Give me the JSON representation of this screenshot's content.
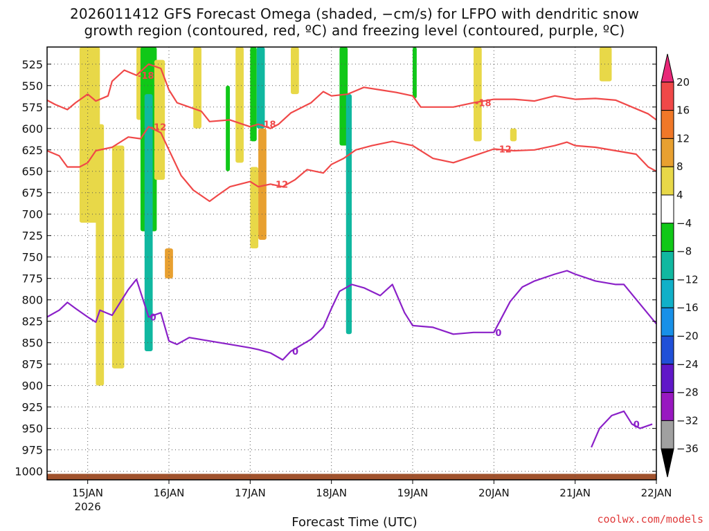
{
  "title": {
    "line1": "2026011412 GFS Forecast Omega (shaded, −cm/s) for LFPO with dendritic snow",
    "line2": "growth region (contoured, red, ºC) and freezing level (contoured, purple, ºC)"
  },
  "credit": "coolwx.com/models",
  "chart_data": {
    "type": "time-height contour",
    "xlabel": "Forecast Time (UTC)",
    "ylabel": "",
    "x_ticks": [
      {
        "day": 15,
        "label": "15JAN",
        "sub": "2026"
      },
      {
        "day": 16,
        "label": "16JAN",
        "sub": ""
      },
      {
        "day": 17,
        "label": "17JAN",
        "sub": ""
      },
      {
        "day": 18,
        "label": "18JAN",
        "sub": ""
      },
      {
        "day": 19,
        "label": "19JAN",
        "sub": ""
      },
      {
        "day": 20,
        "label": "20JAN",
        "sub": ""
      },
      {
        "day": 21,
        "label": "21JAN",
        "sub": ""
      },
      {
        "day": 22,
        "label": "22JAN",
        "sub": ""
      }
    ],
    "xlim": [
      14.5,
      22.0
    ],
    "ylim": [
      1010,
      505
    ],
    "y_ticks": [
      525,
      550,
      575,
      600,
      625,
      650,
      675,
      700,
      725,
      750,
      775,
      800,
      825,
      850,
      875,
      900,
      925,
      950,
      975,
      1000
    ],
    "grid": true,
    "colorbar": {
      "labels": [
        "20",
        "16",
        "12",
        "8",
        "4",
        "−4",
        "−8",
        "−12",
        "−16",
        "−20",
        "−24",
        "−28",
        "−32",
        "−36"
      ],
      "colors": [
        "#e82878",
        "#f04848",
        "#f07828",
        "#e8a030",
        "#e8d848",
        "#ffffff",
        "#10c818",
        "#10b8a0",
        "#10b0c8",
        "#1890e8",
        "#2050d8",
        "#6018c8",
        "#9818c0",
        "#a0a0a0",
        "#000000"
      ]
    },
    "contours": [
      {
        "level": "-18",
        "color": "#f04848",
        "points": [
          [
            14.5,
            567
          ],
          [
            14.6,
            572
          ],
          [
            14.75,
            578
          ],
          [
            14.85,
            570
          ],
          [
            15.0,
            560
          ],
          [
            15.1,
            568
          ],
          [
            15.25,
            562
          ],
          [
            15.3,
            545
          ],
          [
            15.45,
            532
          ],
          [
            15.6,
            538
          ],
          [
            15.75,
            525
          ],
          [
            15.9,
            530
          ],
          [
            16.0,
            555
          ],
          [
            16.1,
            570
          ],
          [
            16.25,
            575
          ],
          [
            16.4,
            580
          ],
          [
            16.5,
            592
          ],
          [
            16.75,
            590
          ],
          [
            17.0,
            598
          ],
          [
            17.1,
            595
          ],
          [
            17.25,
            600
          ],
          [
            17.35,
            595
          ],
          [
            17.5,
            582
          ],
          [
            17.75,
            570
          ],
          [
            17.9,
            557
          ],
          [
            18.0,
            562
          ],
          [
            18.2,
            560
          ],
          [
            18.4,
            552
          ],
          [
            18.6,
            555
          ],
          [
            18.8,
            558
          ],
          [
            19.0,
            562
          ],
          [
            19.1,
            575
          ],
          [
            19.5,
            575
          ],
          [
            19.75,
            570
          ],
          [
            20.0,
            566
          ],
          [
            20.25,
            566
          ],
          [
            20.5,
            568
          ],
          [
            20.75,
            562
          ],
          [
            21.0,
            566
          ],
          [
            21.25,
            565
          ],
          [
            21.5,
            567
          ],
          [
            21.75,
            577
          ],
          [
            21.9,
            583
          ],
          [
            22.0,
            590
          ]
        ]
      },
      {
        "level": "-12",
        "color": "#f04848",
        "points": [
          [
            14.5,
            626
          ],
          [
            14.65,
            632
          ],
          [
            14.75,
            645
          ],
          [
            14.9,
            645
          ],
          [
            15.0,
            640
          ],
          [
            15.1,
            626
          ],
          [
            15.3,
            622
          ],
          [
            15.5,
            610
          ],
          [
            15.65,
            612
          ],
          [
            15.75,
            598
          ],
          [
            15.9,
            605
          ],
          [
            16.0,
            625
          ],
          [
            16.15,
            655
          ],
          [
            16.3,
            672
          ],
          [
            16.5,
            685
          ],
          [
            16.6,
            678
          ],
          [
            16.75,
            668
          ],
          [
            17.0,
            662
          ],
          [
            17.1,
            668
          ],
          [
            17.25,
            665
          ],
          [
            17.4,
            668
          ],
          [
            17.55,
            660
          ],
          [
            17.7,
            648
          ],
          [
            17.9,
            652
          ],
          [
            18.0,
            642
          ],
          [
            18.15,
            635
          ],
          [
            18.3,
            625
          ],
          [
            18.5,
            620
          ],
          [
            18.75,
            615
          ],
          [
            19.0,
            620
          ],
          [
            19.25,
            635
          ],
          [
            19.5,
            640
          ],
          [
            19.75,
            632
          ],
          [
            20.0,
            624
          ],
          [
            20.25,
            626
          ],
          [
            20.5,
            625
          ],
          [
            20.75,
            620
          ],
          [
            20.9,
            616
          ],
          [
            21.0,
            620
          ],
          [
            21.25,
            622
          ],
          [
            21.5,
            626
          ],
          [
            21.75,
            630
          ],
          [
            21.9,
            645
          ],
          [
            22.0,
            650
          ]
        ]
      },
      {
        "level": "0",
        "color": "#8a20c8",
        "points": [
          [
            14.5,
            820
          ],
          [
            14.65,
            812
          ],
          [
            14.75,
            803
          ],
          [
            14.85,
            810
          ],
          [
            15.0,
            820
          ],
          [
            15.1,
            826
          ],
          [
            15.15,
            812
          ],
          [
            15.3,
            818
          ],
          [
            15.5,
            788
          ],
          [
            15.6,
            776
          ],
          [
            15.75,
            820
          ],
          [
            15.9,
            815
          ],
          [
            16.0,
            848
          ],
          [
            16.1,
            852
          ],
          [
            16.25,
            844
          ],
          [
            16.5,
            848
          ],
          [
            16.75,
            852
          ],
          [
            17.0,
            856
          ],
          [
            17.1,
            858
          ],
          [
            17.25,
            862
          ],
          [
            17.4,
            870
          ],
          [
            17.5,
            860
          ],
          [
            17.75,
            846
          ],
          [
            17.9,
            832
          ],
          [
            18.0,
            810
          ],
          [
            18.1,
            790
          ],
          [
            18.25,
            782
          ],
          [
            18.4,
            786
          ],
          [
            18.6,
            795
          ],
          [
            18.75,
            782
          ],
          [
            18.9,
            815
          ],
          [
            19.0,
            830
          ],
          [
            19.25,
            832
          ],
          [
            19.5,
            840
          ],
          [
            19.75,
            838
          ],
          [
            20.0,
            838
          ],
          [
            20.2,
            802
          ],
          [
            20.35,
            785
          ],
          [
            20.5,
            778
          ],
          [
            20.75,
            770
          ],
          [
            20.9,
            766
          ],
          [
            21.0,
            770
          ],
          [
            21.25,
            778
          ],
          [
            21.5,
            782
          ],
          [
            21.6,
            782
          ],
          [
            21.8,
            805
          ],
          [
            22.0,
            828
          ]
        ]
      },
      {
        "level": "0",
        "color": "#8a20c8",
        "points": [
          [
            21.2,
            972
          ],
          [
            21.3,
            950
          ],
          [
            21.45,
            935
          ],
          [
            21.6,
            930
          ],
          [
            21.7,
            945
          ],
          [
            21.8,
            950
          ],
          [
            21.95,
            945
          ]
        ]
      }
    ],
    "omega_bands": [
      {
        "x": [
          14.9,
          15.15
        ],
        "p": [
          505,
          710
        ],
        "color": "#e8d848"
      },
      {
        "x": [
          15.1,
          15.2
        ],
        "p": [
          595,
          900
        ],
        "color": "#e8d848"
      },
      {
        "x": [
          15.3,
          15.45
        ],
        "p": [
          620,
          880
        ],
        "color": "#e8d848"
      },
      {
        "x": [
          15.6,
          15.72
        ],
        "p": [
          505,
          590
        ],
        "color": "#e8d848"
      },
      {
        "x": [
          15.65,
          15.85
        ],
        "p": [
          505,
          720
        ],
        "color": "#10c818"
      },
      {
        "x": [
          15.7,
          15.8
        ],
        "p": [
          560,
          860
        ],
        "color": "#10b8a0"
      },
      {
        "x": [
          15.82,
          15.95
        ],
        "p": [
          520,
          660
        ],
        "color": "#e8d848"
      },
      {
        "x": [
          15.95,
          16.05
        ],
        "p": [
          740,
          775
        ],
        "color": "#e8a030"
      },
      {
        "x": [
          16.3,
          16.4
        ],
        "p": [
          505,
          600
        ],
        "color": "#e8d848"
      },
      {
        "x": [
          16.7,
          16.75
        ],
        "p": [
          550,
          650
        ],
        "color": "#10c818"
      },
      {
        "x": [
          16.82,
          16.92
        ],
        "p": [
          505,
          640
        ],
        "color": "#e8d848"
      },
      {
        "x": [
          17.0,
          17.08
        ],
        "p": [
          505,
          615
        ],
        "color": "#10c818"
      },
      {
        "x": [
          17.0,
          17.1
        ],
        "p": [
          645,
          740
        ],
        "color": "#e8d848"
      },
      {
        "x": [
          17.08,
          17.18
        ],
        "p": [
          505,
          600
        ],
        "color": "#10b8a0"
      },
      {
        "x": [
          17.1,
          17.2
        ],
        "p": [
          600,
          730
        ],
        "color": "#e8a030"
      },
      {
        "x": [
          17.5,
          17.6
        ],
        "p": [
          505,
          560
        ],
        "color": "#e8d848"
      },
      {
        "x": [
          18.1,
          18.2
        ],
        "p": [
          505,
          620
        ],
        "color": "#10c818"
      },
      {
        "x": [
          18.18,
          18.25
        ],
        "p": [
          560,
          840
        ],
        "color": "#10b8a0"
      },
      {
        "x": [
          19.0,
          19.05
        ],
        "p": [
          505,
          565
        ],
        "color": "#10c818"
      },
      {
        "x": [
          19.75,
          19.85
        ],
        "p": [
          505,
          615
        ],
        "color": "#e8d848"
      },
      {
        "x": [
          20.2,
          20.28
        ],
        "p": [
          600,
          615
        ],
        "color": "#e8d848"
      },
      {
        "x": [
          21.3,
          21.45
        ],
        "p": [
          505,
          545
        ],
        "color": "#e8d848"
      }
    ]
  }
}
